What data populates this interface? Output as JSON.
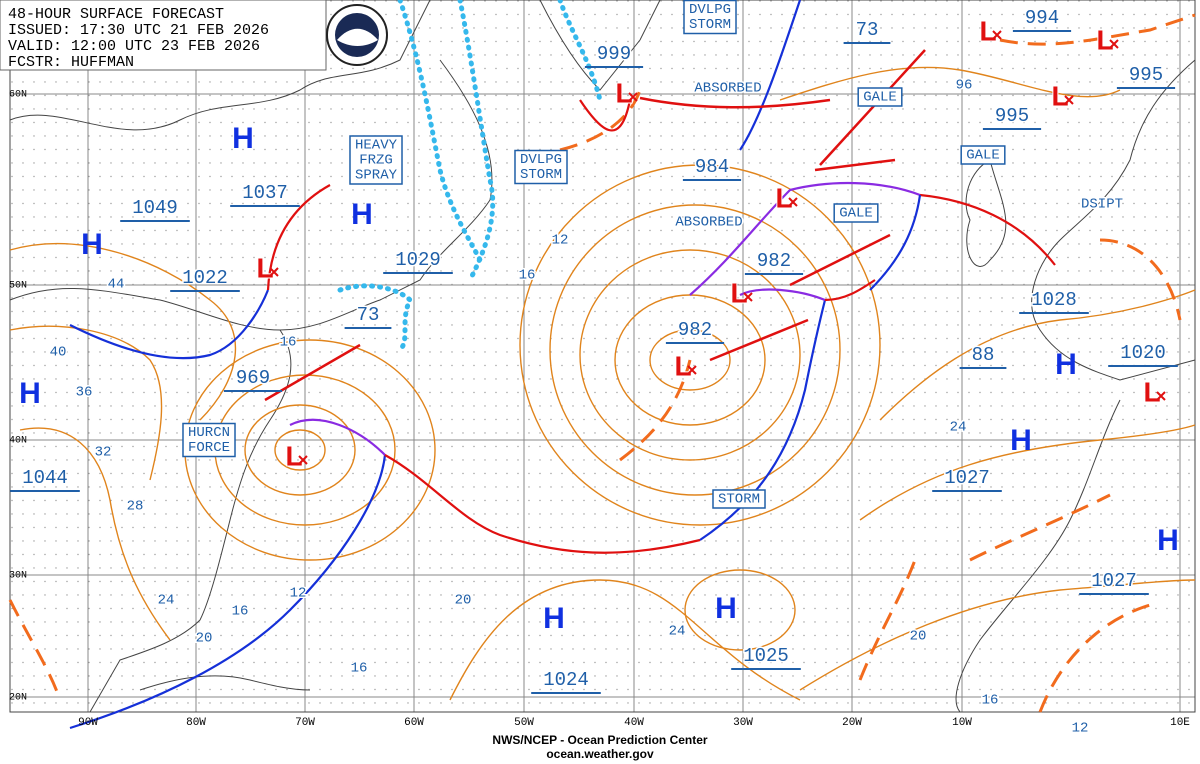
{
  "header": {
    "lines": [
      "48-HOUR SURFACE FORECAST",
      "ISSUED: 17:30 UTC 21 FEB 2026",
      "VALID: 12:00 UTC 23 FEB 2026",
      "FCSTR: HUFFMAN"
    ]
  },
  "grid": {
    "lat_labels": [
      "60N",
      "50N",
      "40N",
      "30N",
      "20N"
    ],
    "lon_labels": [
      "90W",
      "80W",
      "70W",
      "60W",
      "50W",
      "40W",
      "30W",
      "20W",
      "10W",
      "10E"
    ]
  },
  "pressure_labels": [
    "1049",
    "1037",
    "1022",
    "1029",
    "73",
    "969",
    "1044",
    "999",
    "73",
    "984",
    "982",
    "982",
    "994",
    "995",
    "995",
    "1028",
    "88",
    "1020",
    "1027",
    "1027",
    "1025",
    "1024"
  ],
  "centers": {
    "highs": [
      "H",
      "H",
      "H",
      "H",
      "H",
      "H",
      "H",
      "H",
      "H"
    ],
    "lows": [
      "L",
      "L",
      "L",
      "L",
      "L",
      "L",
      "L",
      "L",
      "L",
      "L"
    ]
  },
  "warnings": [
    {
      "lines": [
        "HEAVY",
        "FRZG",
        "SPRAY"
      ]
    },
    {
      "lines": [
        "DVLPG",
        "STORM"
      ]
    },
    {
      "lines": [
        "DVLPG",
        "STORM"
      ]
    },
    {
      "lines": [
        "HURCN",
        "FORCE"
      ]
    },
    {
      "lines": [
        "GALE"
      ]
    },
    {
      "lines": [
        "GALE"
      ]
    },
    {
      "lines": [
        "GALE"
      ]
    },
    {
      "lines": [
        "STORM"
      ]
    }
  ],
  "notes": [
    "ABSORBED",
    "ABSORBED",
    "DSIPT"
  ],
  "contour_labels": [
    "44",
    "40",
    "36",
    "32",
    "28",
    "24",
    "16",
    "20",
    "12",
    "16",
    "20",
    "16",
    "12",
    "16",
    "96",
    "24",
    "24",
    "20",
    "16",
    "12"
  ],
  "footer": {
    "lines": [
      "NWS/NCEP - Ocean Prediction Center",
      "ocean.weather.gov"
    ]
  }
}
